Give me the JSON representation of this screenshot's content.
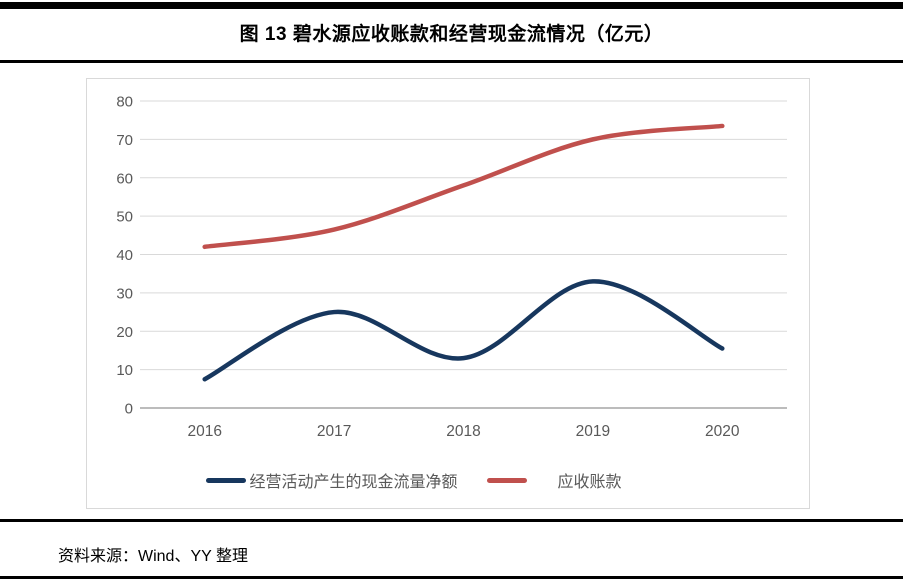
{
  "page": {
    "title": "图 13  碧水源应收账款和经营现金流情况（亿元）",
    "source_note": "资料来源：Wind、YY 整理"
  },
  "chart_data": {
    "type": "line",
    "title": "图 13  碧水源应收账款和经营现金流情况（亿元）",
    "categories": [
      "2016",
      "2017",
      "2018",
      "2019",
      "2020"
    ],
    "series": [
      {
        "name": "经营活动产生的现金流量净额",
        "values": [
          7.5,
          25,
          13,
          33,
          15.5
        ],
        "color": "#17375E"
      },
      {
        "name": "应收账款",
        "values": [
          42,
          46.5,
          58,
          70,
          73.5
        ],
        "color": "#C0504D"
      }
    ],
    "xlabel": "",
    "ylabel": "",
    "ylim": [
      0,
      80
    ],
    "yticks": [
      0,
      10,
      20,
      30,
      40,
      50,
      60,
      70,
      80
    ],
    "grid": true,
    "smooth": true,
    "legend_position": "bottom",
    "colors": {
      "gridline": "#d9d9d9",
      "axis_line": "#a6a6a6",
      "tick_label": "#595959",
      "frame_border": "#d9d9d9"
    }
  }
}
